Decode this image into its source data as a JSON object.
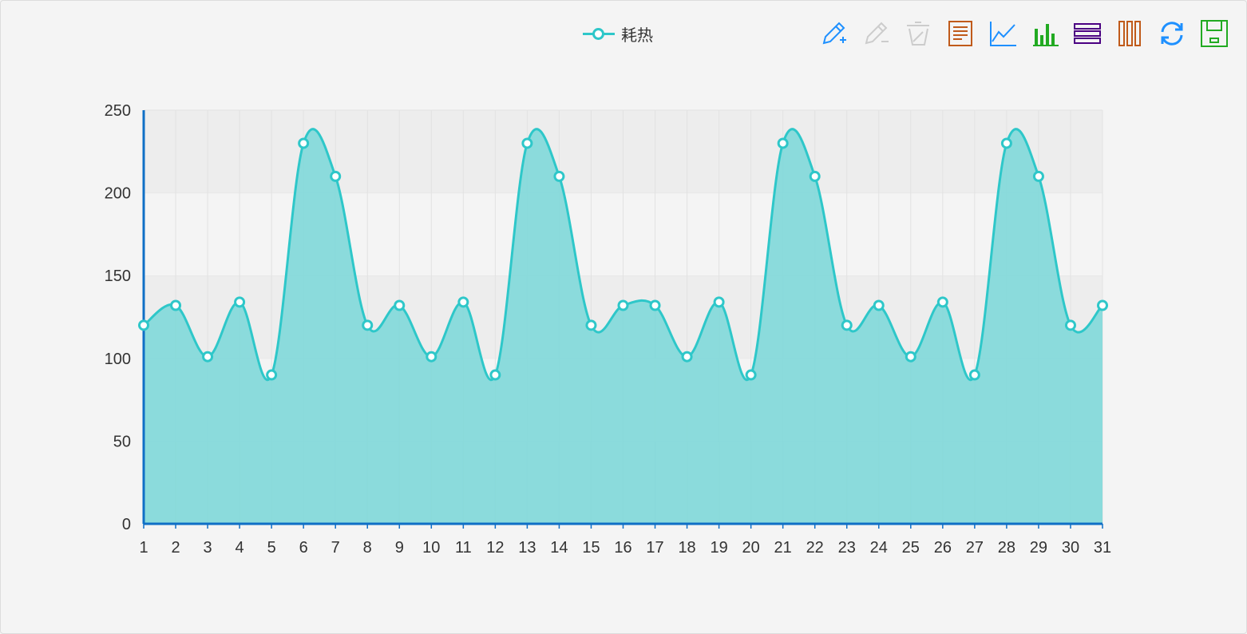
{
  "legend": {
    "label": "耗热",
    "color": "#2ec7c9"
  },
  "toolbox": [
    {
      "name": "mark-icon",
      "color": "#1e90ff"
    },
    {
      "name": "mark-undo-icon",
      "color": "#cccccc"
    },
    {
      "name": "mark-clear-icon",
      "color": "#cccccc"
    },
    {
      "name": "data-view-icon",
      "color": "#c05a1a"
    },
    {
      "name": "line-chart-icon",
      "color": "#1e90ff"
    },
    {
      "name": "bar-chart-icon",
      "color": "#22aa22"
    },
    {
      "name": "stack-icon",
      "color": "#4b0082"
    },
    {
      "name": "tiled-icon",
      "color": "#c05a1a"
    },
    {
      "name": "restore-icon",
      "color": "#1e90ff"
    },
    {
      "name": "save-image-icon",
      "color": "#22aa22"
    }
  ],
  "chart_data": {
    "type": "area",
    "smooth": true,
    "series": [
      {
        "name": "耗热",
        "color": "#2ec7c9",
        "values": [
          120,
          132,
          101,
          134,
          90,
          230,
          210,
          120,
          132,
          101,
          134,
          90,
          230,
          210,
          120,
          132,
          132,
          101,
          134,
          90,
          230,
          210,
          120,
          132,
          101,
          134,
          90,
          230,
          210,
          120,
          132
        ]
      }
    ],
    "categories": [
      "1",
      "2",
      "3",
      "4",
      "5",
      "6",
      "7",
      "8",
      "9",
      "10",
      "11",
      "12",
      "13",
      "14",
      "15",
      "16",
      "17",
      "18",
      "19",
      "20",
      "21",
      "22",
      "23",
      "24",
      "25",
      "26",
      "27",
      "28",
      "29",
      "30",
      "31"
    ],
    "yticks": [
      0,
      50,
      100,
      150,
      200,
      250
    ],
    "ylim": [
      0,
      250
    ],
    "xlabel": "",
    "ylabel": "",
    "title": "",
    "grid": true,
    "legend_position": "top-center",
    "axis_color": "#0f6fc6",
    "fill_color": "#7fd8d9"
  }
}
